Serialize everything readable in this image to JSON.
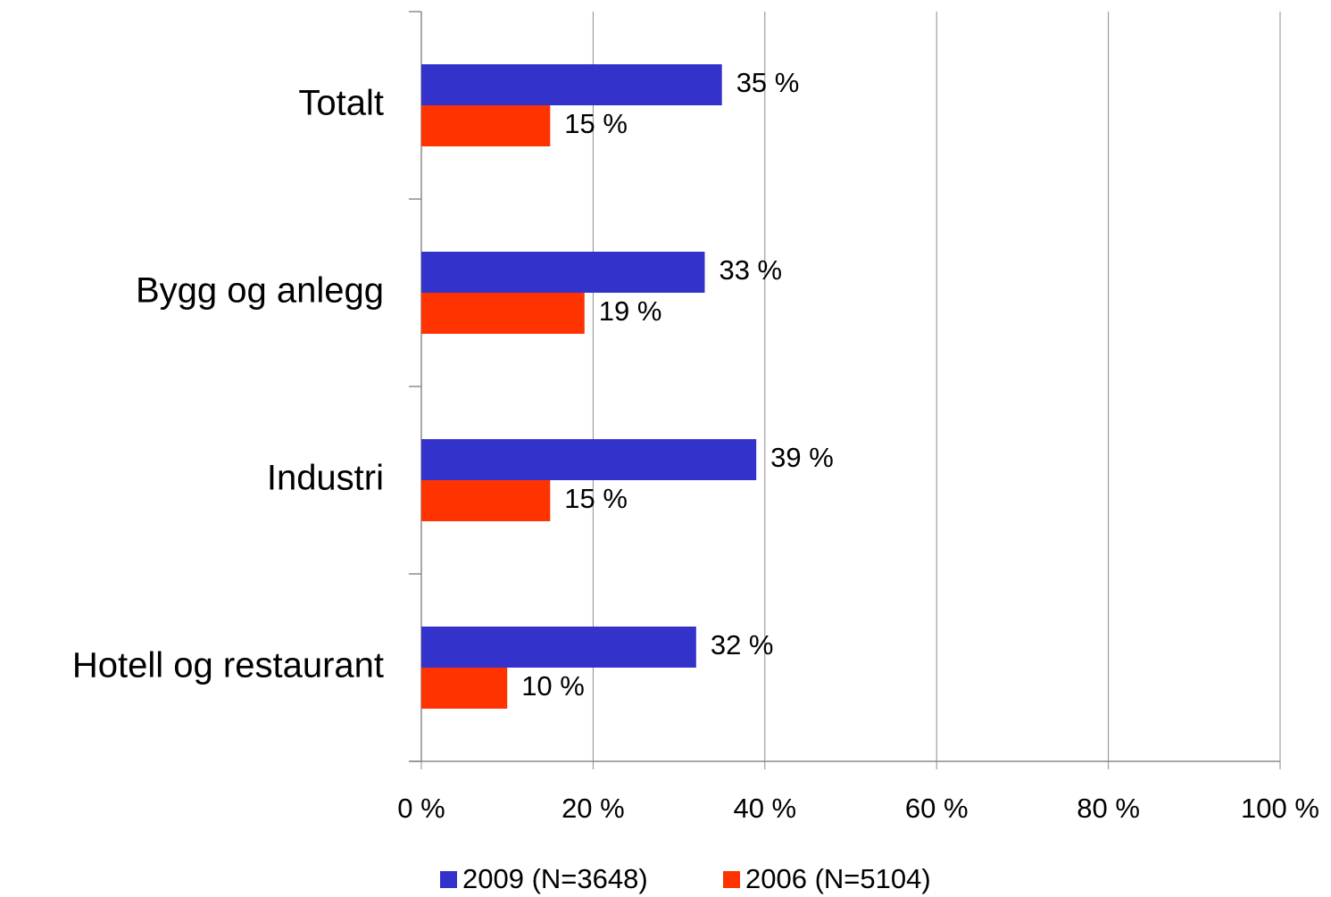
{
  "chart_data": {
    "type": "bar",
    "orientation": "horizontal",
    "categories": [
      "Totalt",
      "Bygg og anlegg",
      "Industri",
      "Hotell og restaurant"
    ],
    "series": [
      {
        "name": "2009 (N=3648)",
        "color": "#3333cc",
        "values": [
          35,
          33,
          39,
          32
        ],
        "value_labels": [
          "35 %",
          "33 %",
          "39 %",
          "32 %"
        ]
      },
      {
        "name": "2006 (N=5104)",
        "color": "#ff3300",
        "values": [
          15,
          19,
          15,
          10
        ],
        "value_labels": [
          "15 %",
          "19 %",
          "15 %",
          "10 %"
        ]
      }
    ],
    "xlim": [
      0,
      100
    ],
    "xticks": [
      {
        "value": 0,
        "label": "0 %"
      },
      {
        "value": 20,
        "label": "20 %"
      },
      {
        "value": 40,
        "label": "40 %"
      },
      {
        "value": 60,
        "label": "60 %"
      },
      {
        "value": 80,
        "label": "80 %"
      },
      {
        "value": 100,
        "label": "100 %"
      }
    ],
    "grid": true,
    "legend": "bottom"
  }
}
